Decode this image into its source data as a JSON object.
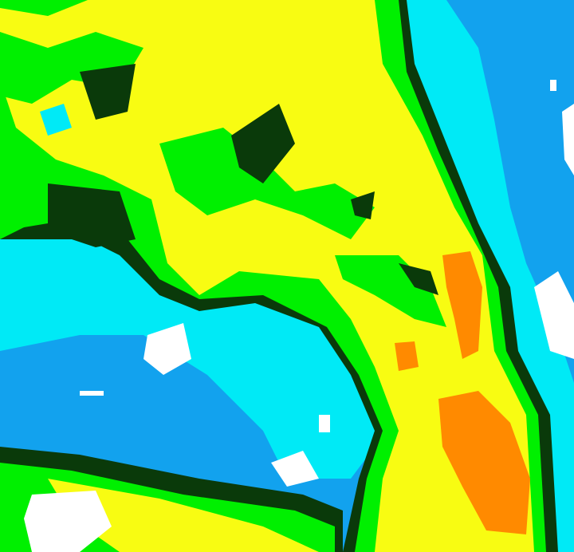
{
  "map": {
    "kind": "classified satellite imagery",
    "colors": {
      "ocean": "#12a2ee",
      "shallow": "#00eaf6",
      "land_high": "#f8fc12",
      "land_mid": "#00f000",
      "land_low": "#0a3a0a",
      "hot": "#ff8a00",
      "cloud": "#ffffff"
    }
  }
}
